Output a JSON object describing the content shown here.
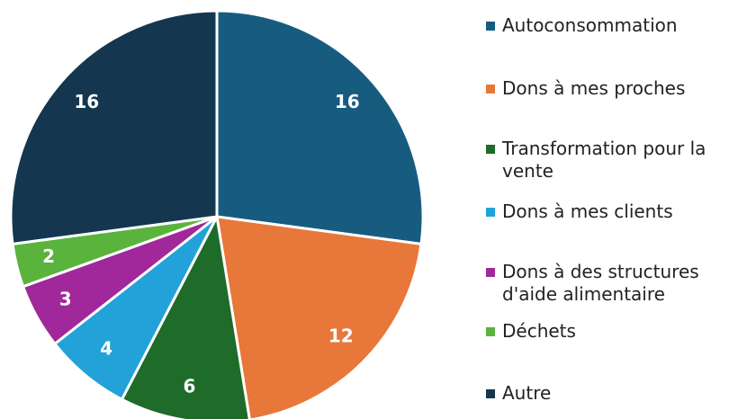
{
  "chart_data": {
    "type": "pie",
    "categories": [
      "Autoconsommation",
      "Dons à mes proches",
      "Transformation pour la vente",
      "Dons à mes clients",
      "Dons à des structures d'aide alimentaire",
      "Déchets",
      "Autre"
    ],
    "values": [
      16,
      12,
      6,
      4,
      3,
      2,
      16
    ],
    "colors": [
      "#175c7f",
      "#e8773a",
      "#1e6b2a",
      "#22a2d8",
      "#a0289a",
      "#5ab33c",
      "#14374f"
    ]
  }
}
